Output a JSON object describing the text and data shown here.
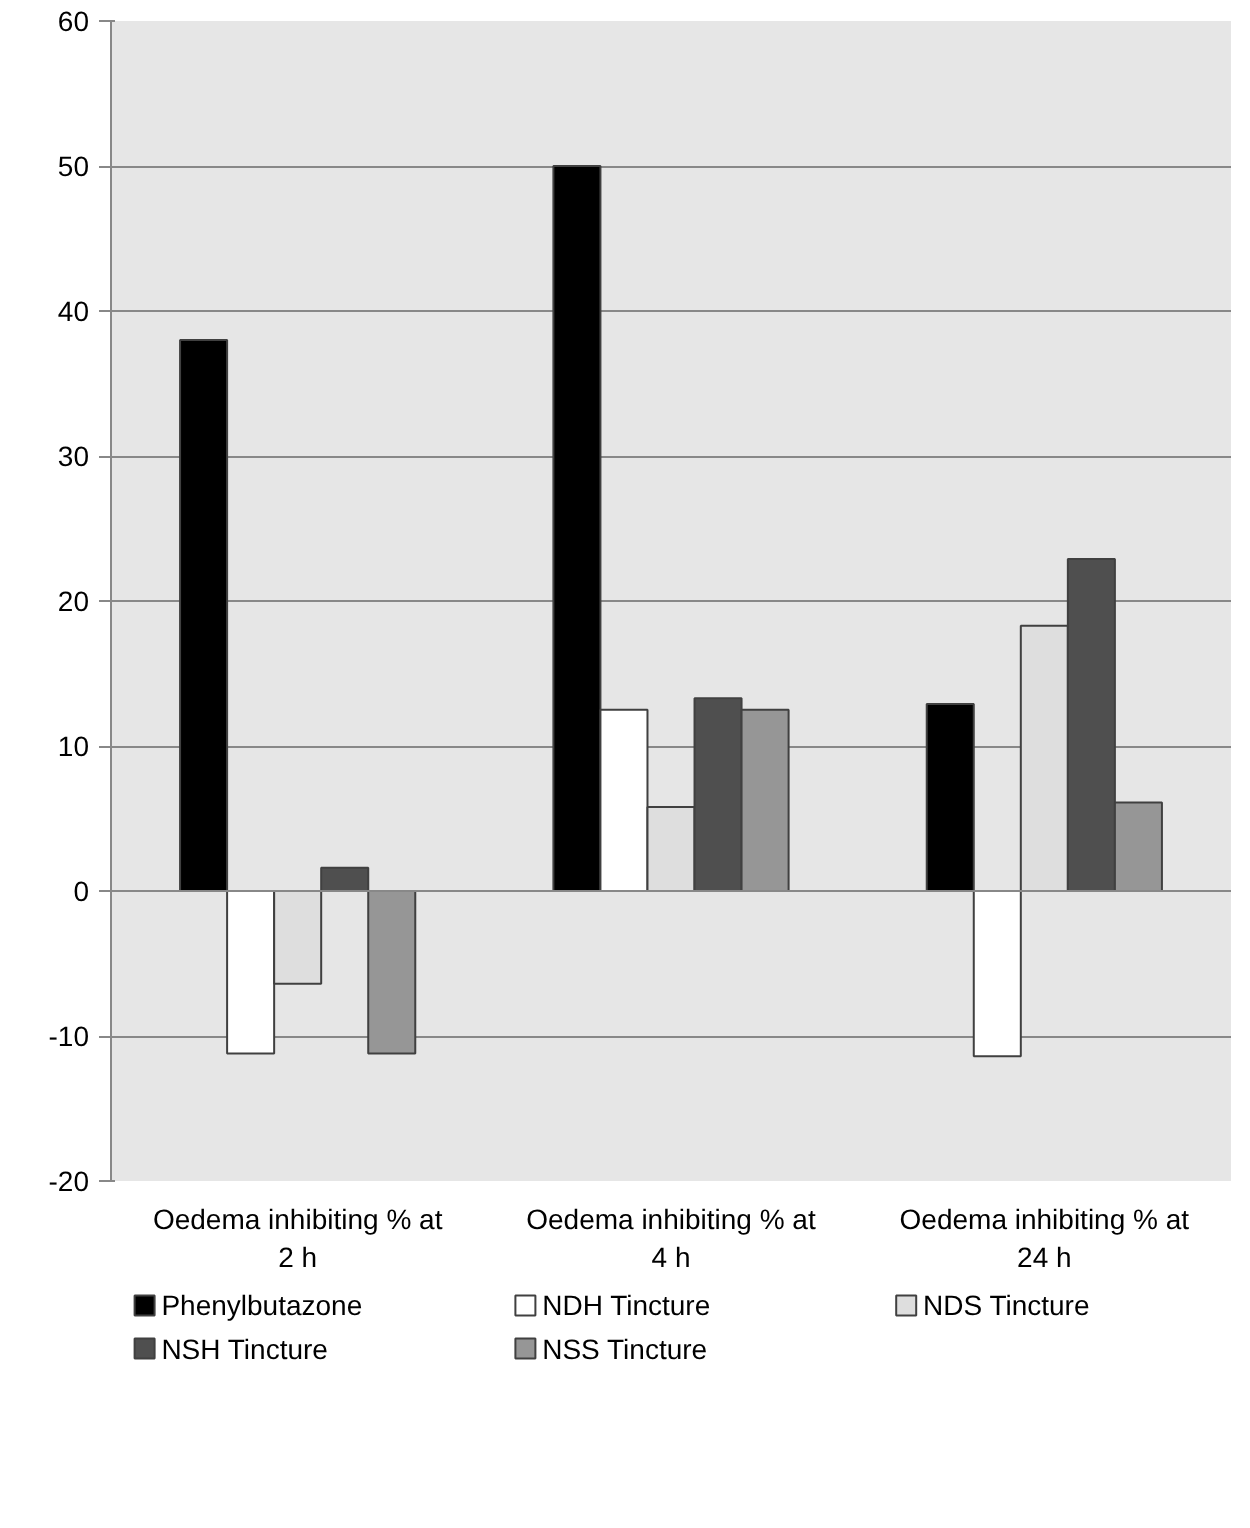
{
  "chart_data": {
    "type": "bar",
    "categories": [
      "Oedema inhibiting % at 2 h",
      "Oedema inhibiting % at 4 h",
      "Oedema inhibiting % at 24 h"
    ],
    "series": [
      {
        "name": "Phenylbutazone",
        "color": "#000000",
        "values": [
          38.0,
          50.0,
          12.9
        ]
      },
      {
        "name": "NDH Tincture",
        "color": "#ffffff",
        "values": [
          -11.2,
          12.5,
          -11.4
        ]
      },
      {
        "name": "NDS Tincture",
        "color": "#dedede",
        "values": [
          -6.4,
          5.8,
          18.3
        ]
      },
      {
        "name": "NSH Tincture",
        "color": "#4f4f4f",
        "values": [
          1.6,
          13.3,
          22.9
        ]
      },
      {
        "name": "NSS Tincture",
        "color": "#969696",
        "values": [
          -11.2,
          12.5,
          6.1
        ]
      }
    ],
    "ylim": [
      -20,
      60
    ],
    "yticks": [
      -20,
      -10,
      0,
      10,
      20,
      30,
      40,
      50,
      60
    ],
    "grid": "y",
    "legend": "bottom"
  }
}
